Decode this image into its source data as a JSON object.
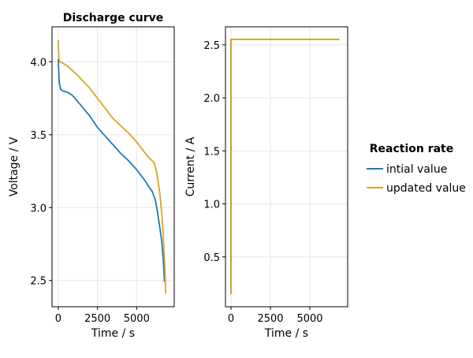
{
  "legend": {
    "title": "Reaction rate",
    "placement": "right",
    "entries": [
      {
        "label": "intial value",
        "color": "#1f7ab8"
      },
      {
        "label": "updated value",
        "color": "#daa520"
      }
    ]
  },
  "chart_data": [
    {
      "type": "line",
      "title": "Discharge curve",
      "xlabel": "Time / s",
      "ylabel": "Voltage / V",
      "xlim": [
        -400,
        7400
      ],
      "ylim": [
        2.32,
        4.24
      ],
      "xticks": [
        0,
        2500,
        5000
      ],
      "xtick_labels": [
        "0",
        "2500",
        "5000"
      ],
      "yticks": [
        2.5,
        3.0,
        3.5,
        4.0
      ],
      "ytick_labels": [
        "2.5",
        "3.0",
        "3.5",
        "4.0"
      ],
      "grid": true,
      "series": [
        {
          "name": "intial value",
          "color": "#1f7ab8",
          "x": [
            0,
            20,
            60,
            150,
            300,
            600,
            900,
            1300,
            2000,
            2500,
            3000,
            3500,
            4000,
            4500,
            5000,
            5500,
            5800,
            6000,
            6100,
            6200,
            6300,
            6400,
            6500,
            6600,
            6700,
            6780
          ],
          "y": [
            4.02,
            3.96,
            3.86,
            3.81,
            3.8,
            3.79,
            3.77,
            3.72,
            3.63,
            3.55,
            3.49,
            3.43,
            3.37,
            3.32,
            3.26,
            3.19,
            3.14,
            3.11,
            3.08,
            3.05,
            2.99,
            2.92,
            2.85,
            2.77,
            2.64,
            2.49
          ]
        },
        {
          "name": "updated value",
          "color": "#daa520",
          "x": [
            0,
            15,
            40,
            100,
            300,
            600,
            900,
            1300,
            2000,
            2500,
            3000,
            3500,
            4000,
            4500,
            5000,
            5500,
            5800,
            6000,
            6100,
            6200,
            6300,
            6400,
            6500,
            6600,
            6700,
            6800,
            6860
          ],
          "y": [
            4.15,
            4.08,
            4.02,
            4.0,
            3.99,
            3.97,
            3.94,
            3.9,
            3.82,
            3.75,
            3.68,
            3.61,
            3.56,
            3.51,
            3.45,
            3.38,
            3.34,
            3.32,
            3.31,
            3.28,
            3.23,
            3.16,
            3.08,
            2.97,
            2.81,
            2.6,
            2.41
          ]
        }
      ]
    },
    {
      "type": "line",
      "title": "",
      "xlabel": "Time / s",
      "ylabel": "Current / A",
      "xlim": [
        -350,
        7400
      ],
      "ylim": [
        0.03,
        2.67
      ],
      "xticks": [
        0,
        2500,
        5000
      ],
      "xtick_labels": [
        "0",
        "2500",
        "5000"
      ],
      "yticks": [
        0.5,
        1.0,
        1.5,
        2.0,
        2.5
      ],
      "ytick_labels": [
        "0.5",
        "1.0",
        "1.5",
        "2.0",
        "2.5"
      ],
      "grid": true,
      "series": [
        {
          "name": "intial value",
          "color": "#1f7ab8",
          "x": [
            0,
            0,
            6860
          ],
          "y": [
            0.15,
            2.55,
            2.55
          ]
        },
        {
          "name": "updated value",
          "color": "#daa520",
          "x": [
            0,
            0,
            6860
          ],
          "y": [
            0.15,
            2.55,
            2.55
          ]
        }
      ]
    }
  ]
}
